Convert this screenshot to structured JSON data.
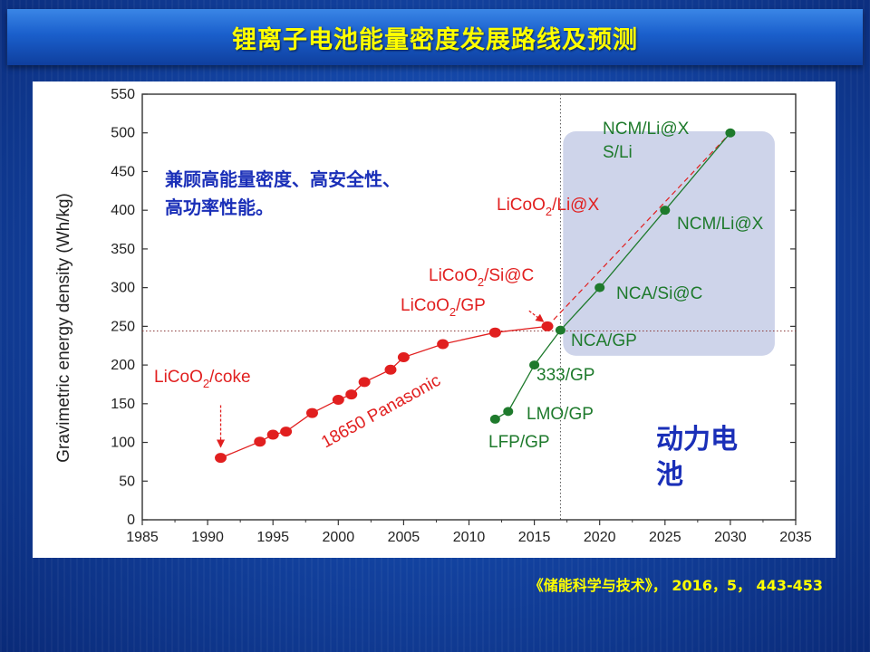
{
  "slide": {
    "title": "锂离子电池能量密度发展路线及预测",
    "citation": "《储能科学与技术》， 2016，5， 443-453"
  },
  "colors": {
    "title_text": "#ffff00",
    "red_series": "#e11f1f",
    "green_series": "#1e7a2c",
    "annotation_blue": "#1a2fb8",
    "forecast_box": "#c5cde6"
  },
  "chart_data": {
    "type": "scatter",
    "ylabel": "Gravimetric energy density (Wh/kg)",
    "xlabel": "",
    "xlim": [
      1985,
      2035
    ],
    "ylim": [
      0,
      550
    ],
    "x_ticks": [
      1985,
      1990,
      1995,
      2000,
      2005,
      2010,
      2015,
      2020,
      2025,
      2030,
      2035
    ],
    "y_ticks": [
      0,
      50,
      100,
      150,
      200,
      250,
      300,
      350,
      400,
      450,
      500,
      550
    ],
    "grid": false,
    "reference_lines": {
      "x": 2017,
      "y": 244
    },
    "series": [
      {
        "color": "#e11f1f",
        "x": [
          1991,
          1994,
          1995,
          1996,
          1998,
          2000,
          2001,
          2002,
          2004,
          2005,
          2008,
          2012,
          2016
        ],
        "y": [
          80,
          101,
          110,
          114,
          138,
          155,
          162,
          178,
          194,
          210,
          227,
          242,
          250
        ]
      },
      {
        "color": "#1e7a2c",
        "x": [
          2012,
          2013,
          2015,
          2017,
          2020,
          2025,
          2030
        ],
        "y": [
          130,
          140,
          200,
          245,
          300,
          400,
          500
        ]
      }
    ],
    "annotations": {
      "licoo2_coke": "LiCoO",
      "licoo2_coke_sub": "2",
      "licoo2_coke_tail": "/coke",
      "panasonic": "18650 Panasonic",
      "licoo2_gp": "LiCoO",
      "licoo2_gp_sub": "2",
      "licoo2_gp_tail": "/GP",
      "licoo2_sic": "LiCoO",
      "licoo2_sic_sub": "2",
      "licoo2_sic_tail": "/Si@C",
      "licoo2_lix": "LiCoO",
      "licoo2_lix_sub": "2",
      "licoo2_lix_tail": "/Li@X",
      "lfp_gp": "LFP/GP",
      "lmo_gp": "LMO/GP",
      "gp333": "333/GP",
      "nca_gp": "NCA/GP",
      "nca_sic": "NCA/Si@C",
      "ncm_lix_400": "NCM/Li@X",
      "ncm_lix_500": "NCM/Li@X",
      "s_li": "S/Li",
      "balance_line1": "兼顾高能量密度、高安全性、",
      "balance_line2": "高功率性能。",
      "power_battery_line1": "动力电",
      "power_battery_line2": "池"
    }
  }
}
